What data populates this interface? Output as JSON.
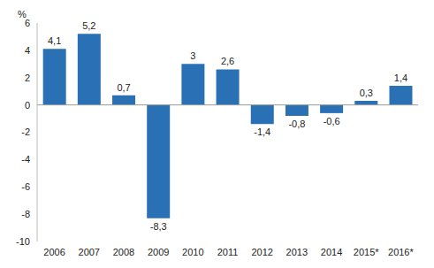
{
  "chart_data": {
    "type": "bar",
    "y_label": "%",
    "categories": [
      "2006",
      "2007",
      "2008",
      "2009",
      "2010",
      "2011",
      "2012",
      "2013",
      "2014",
      "2015*",
      "2016*"
    ],
    "values": [
      4.1,
      5.2,
      0.7,
      -8.3,
      3,
      2.6,
      -1.4,
      -0.8,
      -0.6,
      0.3,
      1.4
    ],
    "value_labels": [
      "4,1",
      "5,2",
      "0,7",
      "-8,3",
      "3",
      "2,6",
      "-1,4",
      "-0,8",
      "-0,6",
      "0,3",
      "1,4"
    ],
    "color": "#2a70b5",
    "ylim": [
      -10,
      6
    ],
    "yticks": [
      -10,
      -8,
      -6,
      -4,
      -2,
      0,
      2,
      4,
      6
    ],
    "grid": false,
    "data_labels": true
  }
}
